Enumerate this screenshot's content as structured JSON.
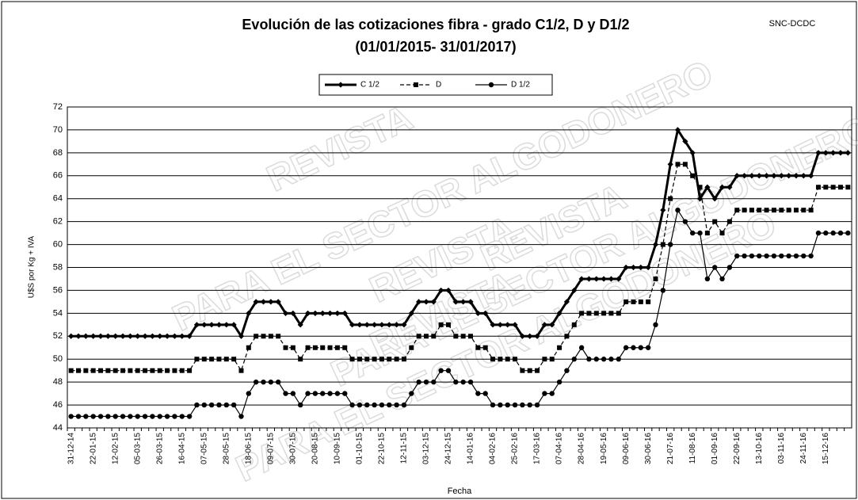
{
  "chart_data": {
    "type": "line",
    "title": "Evolución de las cotizaciones fibra - grado C1/2, D y D1/2",
    "subtitle": "(01/01/2015- 31/01/2017)",
    "source": "SNC-DCDC",
    "x_label": "Fecha",
    "y_label": "U$S por Kg + IVA",
    "watermark": [
      "REVISTA",
      "PARA EL SECTOR ALGODONERO"
    ],
    "categories": [
      "31-12-14",
      null,
      null,
      "22-01-15",
      null,
      null,
      "12-02-15",
      null,
      null,
      "05-03-15",
      null,
      null,
      "26-03-15",
      null,
      null,
      "16-04-15",
      null,
      null,
      "07-05-15",
      null,
      null,
      "28-05-15",
      null,
      null,
      "18-06-15",
      null,
      null,
      "09-07-15",
      null,
      null,
      "30-07-15",
      null,
      null,
      "20-08-15",
      null,
      null,
      "10-09-15",
      null,
      null,
      "01-10-15",
      null,
      null,
      "22-10-15",
      null,
      null,
      "12-11-15",
      null,
      null,
      "03-12-15",
      null,
      null,
      "24-12-15",
      null,
      null,
      "14-01-16",
      null,
      null,
      "04-02-16",
      null,
      null,
      "25-02-16",
      null,
      null,
      "17-03-16",
      null,
      null,
      "07-04-16",
      null,
      null,
      "28-04-16",
      null,
      null,
      "19-05-16",
      null,
      null,
      "09-06-16",
      null,
      null,
      "30-06-16",
      null,
      null,
      "21-07-16",
      null,
      null,
      "11-08-16",
      null,
      null,
      "01-09-16",
      null,
      null,
      "22-09-16",
      null,
      null,
      "13-10-16",
      null,
      null,
      "03-11-16",
      null,
      null,
      "24-11-16",
      null,
      null,
      "15-12-16",
      null,
      null,
      null
    ],
    "series": [
      {
        "name": "C 1/2",
        "color": "#000000",
        "marker": "diamond",
        "line_style": "bold",
        "values": [
          52,
          52,
          52,
          52,
          52,
          52,
          52,
          52,
          52,
          52,
          52,
          52,
          52,
          52,
          52,
          52,
          52,
          53,
          53,
          53,
          53,
          53,
          53,
          52,
          54,
          55,
          55,
          55,
          55,
          54,
          54,
          53,
          54,
          54,
          54,
          54,
          54,
          54,
          53,
          53,
          53,
          53,
          53,
          53,
          53,
          53,
          54,
          55,
          55,
          55,
          56,
          56,
          55,
          55,
          55,
          54,
          54,
          53,
          53,
          53,
          53,
          52,
          52,
          52,
          53,
          53,
          54,
          55,
          56,
          57,
          57,
          57,
          57,
          57,
          57,
          58,
          58,
          58,
          58,
          60,
          63,
          67,
          70,
          69,
          68,
          64,
          65,
          64,
          65,
          65,
          66,
          66,
          66,
          66,
          66,
          66,
          66,
          66,
          66,
          66,
          66,
          68,
          68,
          68,
          68,
          68
        ]
      },
      {
        "name": "D",
        "color": "#000000",
        "marker": "square",
        "line_style": "dashed",
        "values": [
          49,
          49,
          49,
          49,
          49,
          49,
          49,
          49,
          49,
          49,
          49,
          49,
          49,
          49,
          49,
          49,
          49,
          50,
          50,
          50,
          50,
          50,
          50,
          49,
          51,
          52,
          52,
          52,
          52,
          51,
          51,
          50,
          51,
          51,
          51,
          51,
          51,
          51,
          50,
          50,
          50,
          50,
          50,
          50,
          50,
          50,
          51,
          52,
          52,
          52,
          53,
          53,
          52,
          52,
          52,
          51,
          51,
          50,
          50,
          50,
          50,
          49,
          49,
          49,
          50,
          50,
          51,
          52,
          53,
          54,
          54,
          54,
          54,
          54,
          54,
          55,
          55,
          55,
          55,
          57,
          60,
          64,
          67,
          67,
          66,
          65,
          61,
          62,
          61,
          62,
          63,
          63,
          63,
          63,
          63,
          63,
          63,
          63,
          63,
          63,
          63,
          65,
          65,
          65,
          65,
          65
        ]
      },
      {
        "name": "D 1/2",
        "color": "#000000",
        "marker": "circle",
        "line_style": "thin",
        "values": [
          45,
          45,
          45,
          45,
          45,
          45,
          45,
          45,
          45,
          45,
          45,
          45,
          45,
          45,
          45,
          45,
          45,
          46,
          46,
          46,
          46,
          46,
          46,
          45,
          47,
          48,
          48,
          48,
          48,
          47,
          47,
          46,
          47,
          47,
          47,
          47,
          47,
          47,
          46,
          46,
          46,
          46,
          46,
          46,
          46,
          46,
          47,
          48,
          48,
          48,
          49,
          49,
          48,
          48,
          48,
          47,
          47,
          46,
          46,
          46,
          46,
          46,
          46,
          46,
          47,
          47,
          48,
          49,
          50,
          51,
          50,
          50,
          50,
          50,
          50,
          51,
          51,
          51,
          51,
          53,
          56,
          60,
          63,
          62,
          61,
          61,
          57,
          58,
          57,
          58,
          59,
          59,
          59,
          59,
          59,
          59,
          59,
          59,
          59,
          59,
          59,
          61,
          61,
          61,
          61,
          61
        ]
      }
    ],
    "ylim": [
      44,
      72
    ],
    "yticks": [
      44,
      46,
      48,
      50,
      52,
      54,
      56,
      58,
      60,
      62,
      64,
      66,
      68,
      70,
      72
    ],
    "grid": true,
    "legend": "top"
  }
}
